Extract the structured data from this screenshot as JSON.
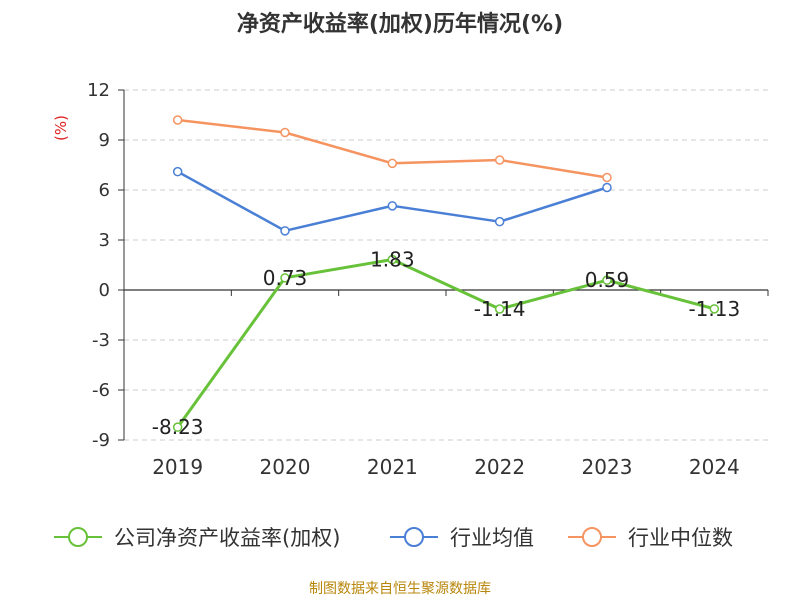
{
  "chart_data": {
    "type": "line",
    "title": "净资产收益率(加权)历年情况(%)",
    "ylabel": "(%)",
    "xlabel": "",
    "categories": [
      "2019",
      "2020",
      "2021",
      "2022",
      "2023",
      "2024"
    ],
    "ylim": [
      -9,
      12
    ],
    "yticks": [
      12,
      9,
      6,
      3,
      0,
      -3,
      -6,
      -9
    ],
    "grid": true,
    "legend_position": "bottom",
    "series": [
      {
        "name": "公司净资产收益率(加权)",
        "color": "#67c23a",
        "values": [
          -8.23,
          0.73,
          1.83,
          -1.14,
          0.59,
          -1.13
        ],
        "labels": [
          "-8.23",
          "0.73",
          "1.83",
          "-1.14",
          "0.59",
          "-1.13"
        ]
      },
      {
        "name": "行业均值",
        "color": "#4a7fd6",
        "values": [
          7.1,
          3.55,
          5.05,
          4.1,
          6.15,
          null
        ]
      },
      {
        "name": "行业中位数",
        "color": "#f59461",
        "values": [
          10.2,
          9.45,
          7.6,
          7.8,
          6.75,
          null
        ]
      }
    ]
  },
  "source_note": "制图数据来自恒生聚源数据库"
}
